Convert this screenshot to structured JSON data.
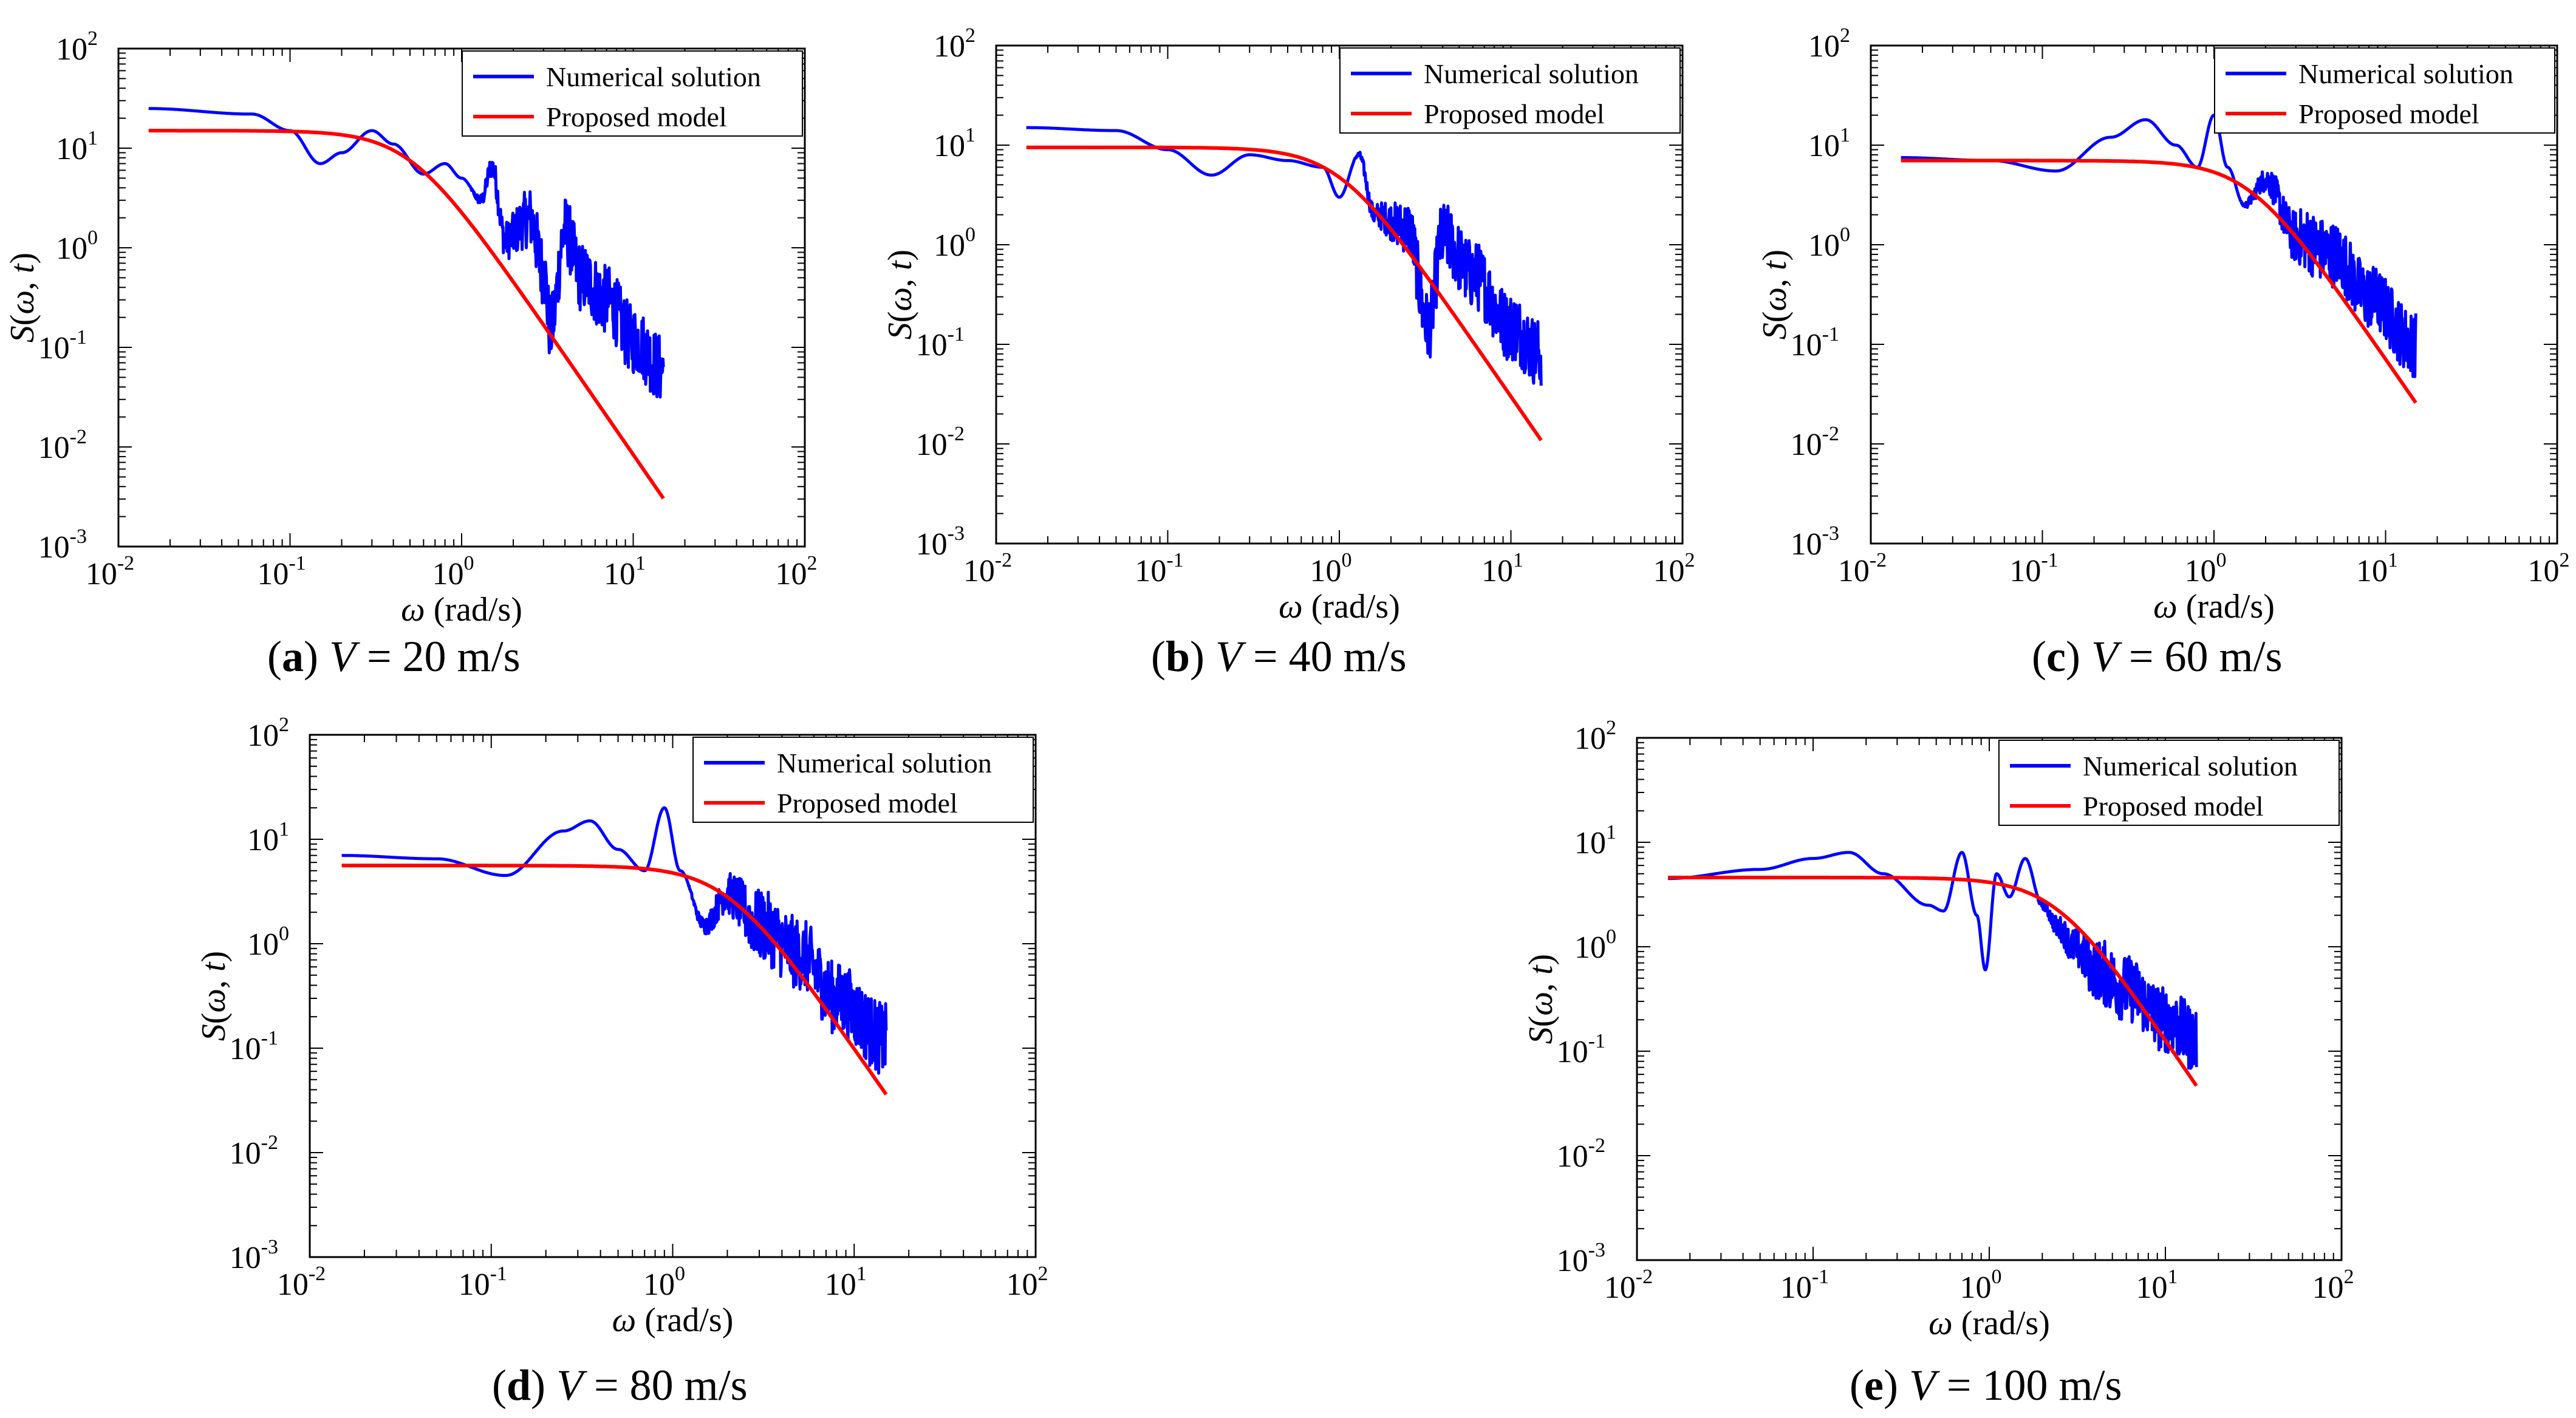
{
  "chart_data": [
    {
      "type": "line",
      "panel": "a",
      "caption_letter": "a",
      "caption_rest": " V = 20 m/s",
      "xlabel": "ω (rad/s)",
      "ylabel": "S(ω, t)",
      "xscale": "log",
      "yscale": "log",
      "xlim": [
        0.01,
        100
      ],
      "ylim": [
        0.001,
        100
      ],
      "xticks": [
        -2,
        -1,
        0,
        1,
        2
      ],
      "yticks": [
        -3,
        -2,
        -1,
        0,
        1,
        2
      ],
      "legend": [
        "Numerical solution",
        "Proposed model"
      ],
      "legend_position": "top-right",
      "series": [
        {
          "name": "Numerical solution",
          "color": "#0000ff",
          "anchors": [
            [
              0.015,
              25
            ],
            [
              0.06,
              22
            ],
            [
              0.1,
              15
            ],
            [
              0.15,
              7
            ],
            [
              0.2,
              9
            ],
            [
              0.3,
              15
            ],
            [
              0.4,
              11
            ],
            [
              0.6,
              5.5
            ],
            [
              0.8,
              7
            ],
            [
              1.0,
              5
            ],
            [
              1.3,
              3
            ],
            [
              1.5,
              6.5
            ],
            [
              1.8,
              1.2
            ],
            [
              2.5,
              2
            ],
            [
              3.0,
              0.6
            ],
            [
              3.3,
              0.15
            ],
            [
              4.0,
              1.5
            ],
            [
              5.0,
              0.5
            ],
            [
              7.0,
              0.3
            ],
            [
              10.0,
              0.12
            ],
            [
              15.0,
              0.06
            ]
          ],
          "noise_from": 1.1,
          "noise_amp": 0.35
        },
        {
          "name": "Proposed model",
          "color": "#ff0000",
          "model": {
            "A": 15,
            "wc": 0.5,
            "p": 2.5
          }
        }
      ]
    },
    {
      "type": "line",
      "panel": "b",
      "caption_letter": "b",
      "caption_rest": " V = 40 m/s",
      "xlabel": "ω (rad/s)",
      "ylabel": "S(ω, t)",
      "xscale": "log",
      "yscale": "log",
      "xlim": [
        0.01,
        100
      ],
      "ylim": [
        0.001,
        100
      ],
      "xticks": [
        -2,
        -1,
        0,
        1,
        2
      ],
      "yticks": [
        -3,
        -2,
        -1,
        0,
        1,
        2
      ],
      "legend": [
        "Numerical solution",
        "Proposed model"
      ],
      "legend_position": "top-right",
      "series": [
        {
          "name": "Numerical solution",
          "color": "#0000ff",
          "anchors": [
            [
              0.015,
              15
            ],
            [
              0.05,
              14
            ],
            [
              0.1,
              9
            ],
            [
              0.18,
              5
            ],
            [
              0.3,
              8
            ],
            [
              0.5,
              7
            ],
            [
              0.8,
              6
            ],
            [
              1.0,
              3
            ],
            [
              1.3,
              8
            ],
            [
              1.6,
              2
            ],
            [
              2.5,
              1.5
            ],
            [
              3.3,
              0.15
            ],
            [
              4.0,
              1.2
            ],
            [
              6.0,
              0.5
            ],
            [
              10.0,
              0.15
            ],
            [
              15.0,
              0.08
            ]
          ],
          "noise_from": 1.2,
          "noise_amp": 0.35
        },
        {
          "name": "Proposed model",
          "color": "#ff0000",
          "model": {
            "A": 9.5,
            "wc": 1.0,
            "p": 2.5
          }
        }
      ]
    },
    {
      "type": "line",
      "panel": "c",
      "caption_letter": "c",
      "caption_rest": " V = 60 m/s",
      "xlabel": "ω (rad/s)",
      "ylabel": "S(ω, t)",
      "xscale": "log",
      "yscale": "log",
      "xlim": [
        0.01,
        100
      ],
      "ylim": [
        0.001,
        100
      ],
      "xticks": [
        -2,
        -1,
        0,
        1,
        2
      ],
      "yticks": [
        -3,
        -2,
        -1,
        0,
        1,
        2
      ],
      "legend": [
        "Numerical solution",
        "Proposed model"
      ],
      "legend_position": "top-right",
      "series": [
        {
          "name": "Numerical solution",
          "color": "#0000ff",
          "anchors": [
            [
              0.015,
              7.5
            ],
            [
              0.05,
              7
            ],
            [
              0.12,
              5.5
            ],
            [
              0.25,
              12
            ],
            [
              0.4,
              18
            ],
            [
              0.6,
              10
            ],
            [
              0.8,
              6
            ],
            [
              1.0,
              20
            ],
            [
              1.2,
              6
            ],
            [
              1.5,
              2.5
            ],
            [
              2.0,
              4.5
            ],
            [
              3.0,
              1.2
            ],
            [
              5.0,
              0.8
            ],
            [
              8.0,
              0.3
            ],
            [
              15.0,
              0.1
            ]
          ],
          "noise_from": 1.4,
          "noise_amp": 0.33
        },
        {
          "name": "Proposed model",
          "color": "#ff0000",
          "model": {
            "A": 7,
            "wc": 1.6,
            "p": 2.5
          }
        }
      ]
    },
    {
      "type": "line",
      "panel": "d",
      "caption_letter": "d",
      "caption_rest": " V = 80 m/s",
      "xlabel": "ω (rad/s)",
      "ylabel": "S(ω, t)",
      "xscale": "log",
      "yscale": "log",
      "xlim": [
        0.01,
        100
      ],
      "ylim": [
        0.001,
        100
      ],
      "xticks": [
        -2,
        -1,
        0,
        1,
        2
      ],
      "yticks": [
        -3,
        -2,
        -1,
        0,
        1,
        2
      ],
      "legend": [
        "Numerical solution",
        "Proposed model"
      ],
      "legend_position": "top-right",
      "series": [
        {
          "name": "Numerical solution",
          "color": "#0000ff",
          "anchors": [
            [
              0.015,
              7
            ],
            [
              0.05,
              6.5
            ],
            [
              0.12,
              4.5
            ],
            [
              0.25,
              12
            ],
            [
              0.35,
              15
            ],
            [
              0.5,
              8
            ],
            [
              0.7,
              5
            ],
            [
              0.9,
              20
            ],
            [
              1.1,
              5
            ],
            [
              1.5,
              1.5
            ],
            [
              2.0,
              3
            ],
            [
              3.0,
              1.5
            ],
            [
              5.0,
              0.8
            ],
            [
              8.0,
              0.3
            ],
            [
              15.0,
              0.12
            ]
          ],
          "noise_from": 1.2,
          "noise_amp": 0.35
        },
        {
          "name": "Proposed model",
          "color": "#ff0000",
          "model": {
            "A": 5.6,
            "wc": 2.0,
            "p": 2.5
          }
        }
      ]
    },
    {
      "type": "line",
      "panel": "e",
      "caption_letter": "e",
      "caption_rest": " V = 100 m/s",
      "xlabel": "ω (rad/s)",
      "ylabel": "S(ω, t)",
      "xscale": "log",
      "yscale": "log",
      "xlim": [
        0.01,
        100
      ],
      "ylim": [
        0.001,
        100
      ],
      "xticks": [
        -2,
        -1,
        0,
        1,
        2
      ],
      "yticks": [
        -3,
        -2,
        -1,
        0,
        1,
        2
      ],
      "legend": [
        "Numerical solution",
        "Proposed model"
      ],
      "legend_position": "top-right",
      "series": [
        {
          "name": "Numerical solution",
          "color": "#0000ff",
          "anchors": [
            [
              0.015,
              4.5
            ],
            [
              0.05,
              5.5
            ],
            [
              0.1,
              7
            ],
            [
              0.16,
              8
            ],
            [
              0.25,
              5
            ],
            [
              0.45,
              2.5
            ],
            [
              0.55,
              2.2
            ],
            [
              0.7,
              8
            ],
            [
              0.85,
              2
            ],
            [
              0.95,
              0.6
            ],
            [
              1.1,
              5
            ],
            [
              1.3,
              3
            ],
            [
              1.6,
              7
            ],
            [
              2.0,
              2.5
            ],
            [
              2.5,
              1.5
            ],
            [
              3.0,
              1
            ],
            [
              4.0,
              0.6
            ],
            [
              6.0,
              0.4
            ],
            [
              10.0,
              0.2
            ],
            [
              15.0,
              0.13
            ]
          ],
          "noise_from": 1.8,
          "noise_amp": 0.32
        },
        {
          "name": "Proposed model",
          "color": "#ff0000",
          "model": {
            "A": 4.6,
            "wc": 2.4,
            "p": 2.5
          }
        }
      ]
    }
  ]
}
